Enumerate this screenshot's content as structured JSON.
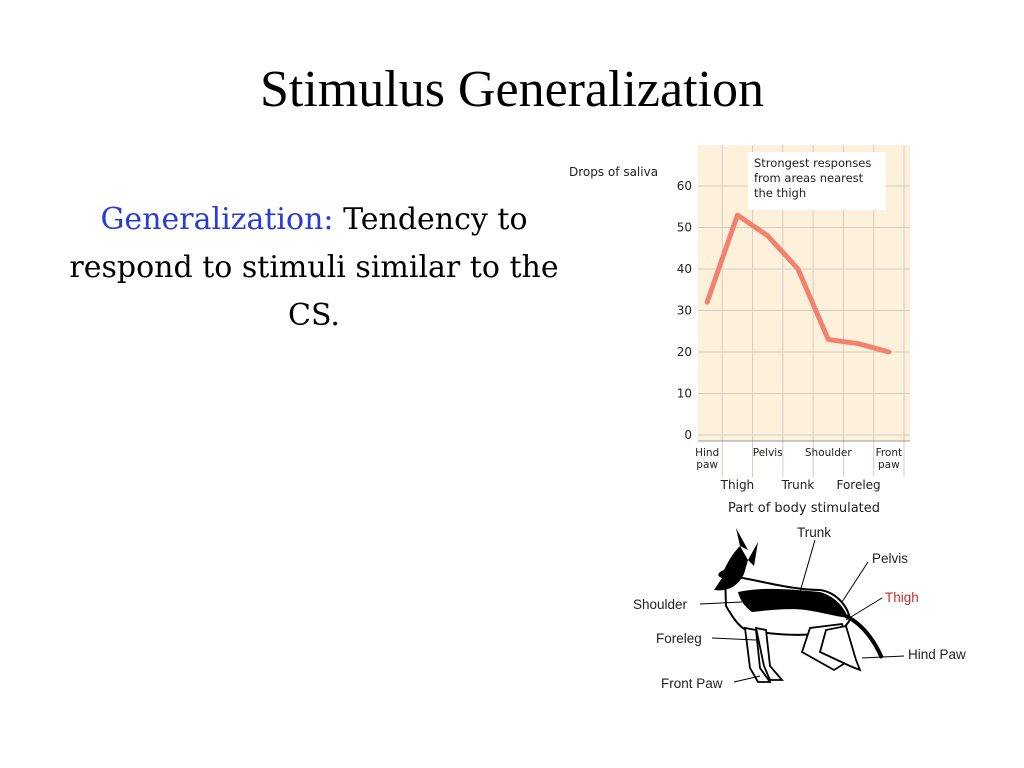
{
  "slide": {
    "title": "Stimulus Generalization",
    "term": "Generalization:",
    "definition": "Tendency to respond to stimuli similar to the CS."
  },
  "chart_data": {
    "type": "line",
    "ylabel": "Drops of saliva",
    "xlabel": "Part of body stimulated",
    "ylim": [
      0,
      60
    ],
    "yticks": [
      0,
      10,
      20,
      30,
      40,
      50,
      60
    ],
    "categories": [
      "Hind paw",
      "Thigh",
      "Pelvis",
      "Trunk",
      "Shoulder",
      "Foreleg",
      "Front paw"
    ],
    "values": [
      32,
      53,
      48,
      40,
      23,
      22,
      20
    ],
    "annotation": "Strongest responses from areas nearest the thigh",
    "line_color": "#f0826e",
    "plot_background": "#fdf1dc",
    "grid": true
  },
  "diagram": {
    "labels": {
      "trunk": "Trunk",
      "pelvis": "Pelvis",
      "thigh": "Thigh",
      "shoulder": "Shoulder",
      "foreleg": "Foreleg",
      "hind_paw": "Hind Paw",
      "front_paw": "Front Paw"
    },
    "highlight_color": "#c0302a"
  }
}
